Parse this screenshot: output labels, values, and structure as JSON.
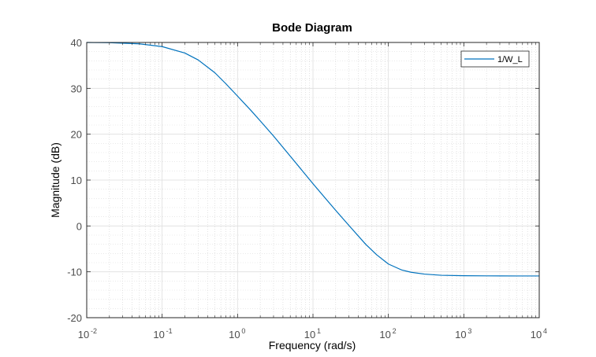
{
  "chart_data": {
    "type": "line",
    "title": "Bode Diagram",
    "xlabel": "Frequency  (rad/s)",
    "ylabel": "Magnitude (dB)",
    "xscale": "log",
    "xlim": [
      0.01,
      10000
    ],
    "ylim": [
      -20,
      40
    ],
    "x_ticks": [
      {
        "value": 0.01,
        "base": "10",
        "exp": "-2"
      },
      {
        "value": 0.1,
        "base": "10",
        "exp": "-1"
      },
      {
        "value": 1,
        "base": "10",
        "exp": "0"
      },
      {
        "value": 10,
        "base": "10",
        "exp": "1"
      },
      {
        "value": 100,
        "base": "10",
        "exp": "2"
      },
      {
        "value": 1000,
        "base": "10",
        "exp": "3"
      },
      {
        "value": 10000,
        "base": "10",
        "exp": "4"
      }
    ],
    "y_ticks": [
      {
        "value": 40,
        "label": "40"
      },
      {
        "value": 30,
        "label": "30"
      },
      {
        "value": 20,
        "label": "20"
      },
      {
        "value": 10,
        "label": "10"
      },
      {
        "value": 0,
        "label": "0"
      },
      {
        "value": -10,
        "label": "-10"
      },
      {
        "value": -20,
        "label": "-20"
      }
    ],
    "grid": true,
    "minor_grid": true,
    "legend_position": "top-right",
    "series": [
      {
        "name": "1/W_L",
        "color": "#0072bd",
        "x": [
          0.01,
          0.02,
          0.05,
          0.1,
          0.2,
          0.3,
          0.5,
          0.7,
          1,
          1.5,
          2,
          3,
          5,
          7,
          10,
          15,
          20,
          30,
          50,
          70,
          100,
          150,
          200,
          300,
          500,
          1000,
          2000,
          5000,
          10000
        ],
        "y": [
          40,
          39.95,
          39.7,
          39.1,
          37.7,
          36.2,
          33.4,
          31.0,
          28.3,
          25.2,
          22.9,
          19.6,
          15.2,
          12.3,
          9.2,
          5.8,
          3.4,
          0.1,
          -4.0,
          -6.3,
          -8.3,
          -9.6,
          -10.1,
          -10.5,
          -10.75,
          -10.85,
          -10.88,
          -10.9,
          -10.9
        ]
      }
    ]
  }
}
